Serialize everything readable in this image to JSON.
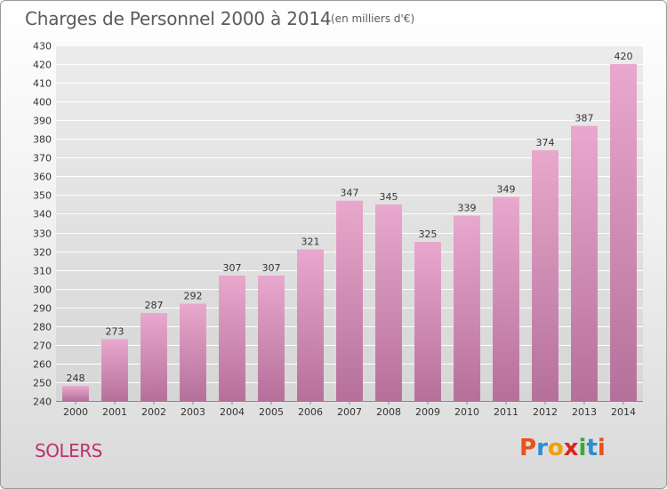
{
  "title": "Charges de Personnel 2000 à 2014",
  "subtitle": "(en milliers d'€)",
  "commune": "SOLERS",
  "logo": {
    "letters": [
      "P",
      "r",
      "o",
      "x",
      "i",
      "t",
      "i"
    ],
    "colors": [
      "#e8521b",
      "#2a8fd0",
      "#f0a000",
      "#d9261c",
      "#3aaa35",
      "#2a8fd0",
      "#e8521b"
    ]
  },
  "colors": {
    "bar_top": "#e9a8cd",
    "bar_bottom": "#b5709a",
    "grid": "#ffffff",
    "axis_text": "#333333"
  },
  "chart_data": {
    "type": "bar",
    "title": "Charges de Personnel 2000 à 2014",
    "xlabel": "",
    "ylabel": "",
    "categories": [
      "2000",
      "2001",
      "2002",
      "2003",
      "2004",
      "2005",
      "2006",
      "2007",
      "2008",
      "2009",
      "2010",
      "2011",
      "2012",
      "2013",
      "2014"
    ],
    "values": [
      248,
      273,
      287,
      292,
      307,
      307,
      321,
      347,
      345,
      325,
      339,
      349,
      374,
      387,
      420
    ],
    "ylim": [
      240,
      430
    ],
    "ytick_step": 10,
    "grid": true,
    "data_labels": true
  }
}
